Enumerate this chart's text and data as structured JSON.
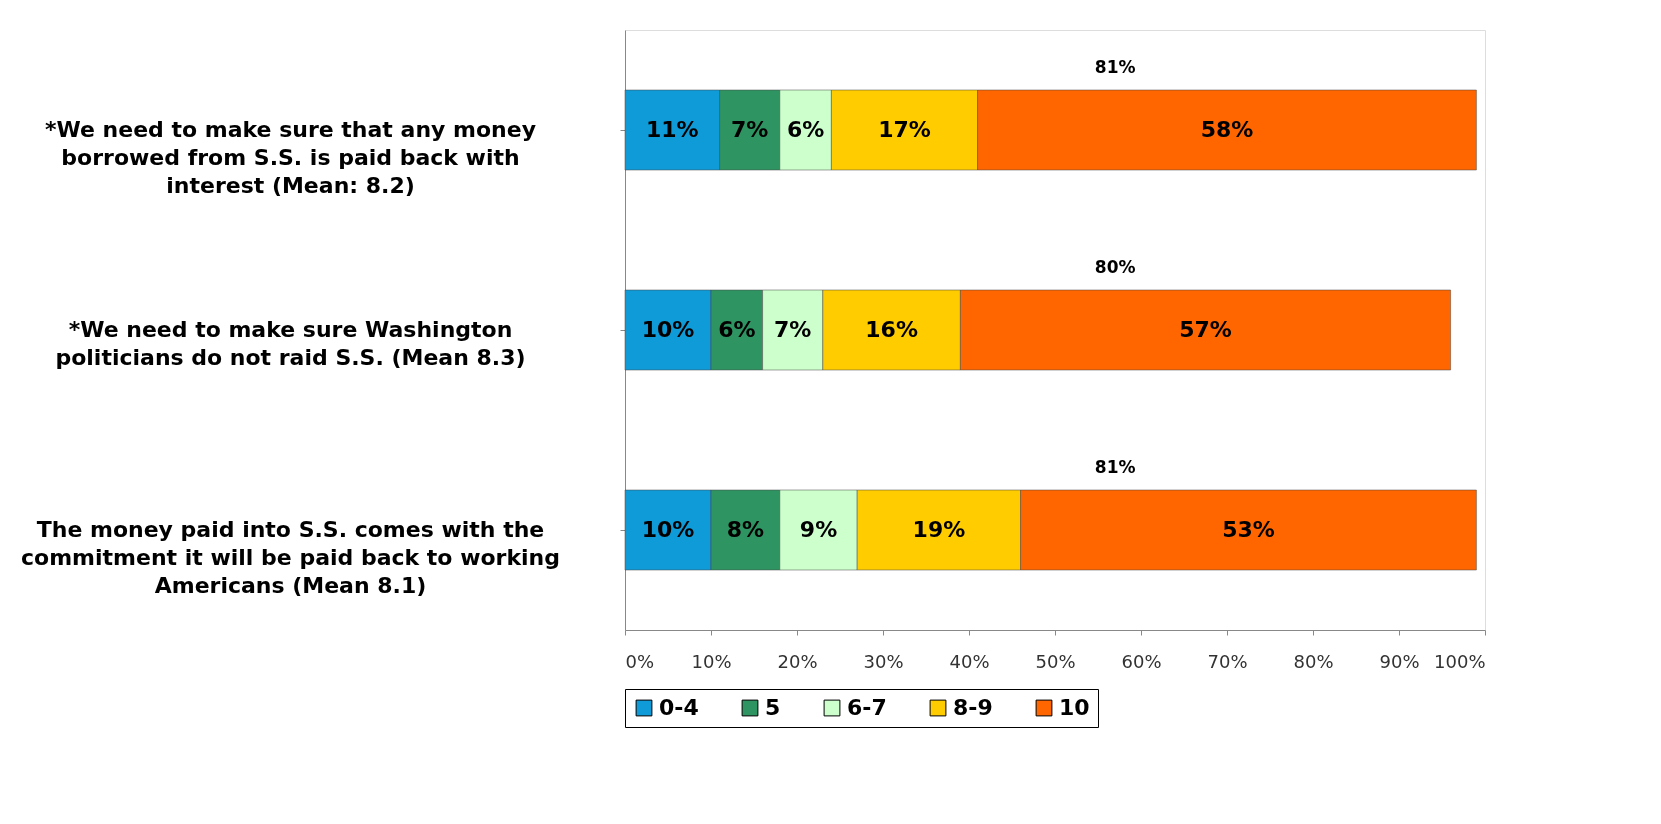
{
  "chart_data": {
    "type": "bar",
    "orientation": "horizontal",
    "stacked": true,
    "categories": [
      "*We need to make sure that any money borrowed from S.S. is paid back with interest (Mean: 8.2)",
      "*We need to make sure Washington politicians do not raid S.S. (Mean 8.3)",
      "The money paid into S.S. comes with the commitment it will be paid back to working Americans (Mean 8.1)"
    ],
    "series": [
      {
        "name": "0-4",
        "color": "#0f9ad8",
        "values": [
          11,
          10,
          10
        ],
        "value_labels": [
          "11%",
          "10%",
          "10%"
        ]
      },
      {
        "name": "5",
        "color": "#2e9462",
        "values": [
          7,
          6,
          8
        ],
        "value_labels": [
          "7%",
          "6%",
          "8%"
        ]
      },
      {
        "name": "6-7",
        "color": "#ccffcc",
        "values": [
          6,
          7,
          9
        ],
        "value_labels": [
          "6%",
          "7%",
          "9%"
        ]
      },
      {
        "name": "8-9",
        "color": "#ffcc00",
        "values": [
          17,
          16,
          19
        ],
        "value_labels": [
          "17%",
          "16%",
          "19%"
        ]
      },
      {
        "name": "10",
        "color": "#ff6600",
        "values": [
          58,
          57,
          53
        ],
        "value_labels": [
          "58%",
          "57%",
          "53%"
        ]
      }
    ],
    "xlim": [
      0,
      100
    ],
    "xticks": [
      {
        "value": 0,
        "label": "0%"
      },
      {
        "value": 10,
        "label": "10%"
      },
      {
        "value": 20,
        "label": "20%"
      },
      {
        "value": 30,
        "label": "30%"
      },
      {
        "value": 40,
        "label": "40%"
      },
      {
        "value": 50,
        "label": "50%"
      },
      {
        "value": 60,
        "label": "60%"
      },
      {
        "value": 70,
        "label": "70%"
      },
      {
        "value": 80,
        "label": "80%"
      },
      {
        "value": 90,
        "label": "90%"
      },
      {
        "value": 100,
        "label": "100%"
      }
    ],
    "annotations": [
      "81%",
      "80%",
      "81%"
    ],
    "grid": false,
    "legend": "bottom"
  }
}
